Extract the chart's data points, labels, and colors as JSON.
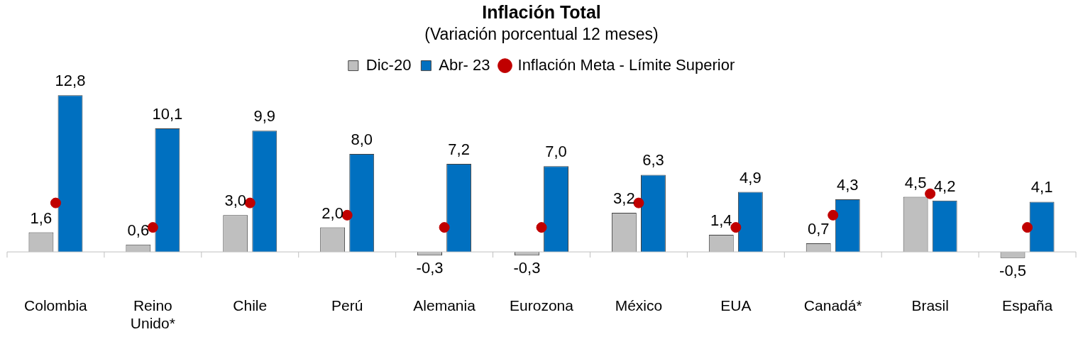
{
  "chart_data": {
    "type": "bar",
    "title": "Inflación Total",
    "subtitle": "(Variación porcentual 12 meses)",
    "categories": [
      "Colombia",
      "Reino Unido*",
      "Chile",
      "Perú",
      "Alemania",
      "Eurozona",
      "México",
      "EUA",
      "Canadá*",
      "Brasil",
      "España"
    ],
    "series": [
      {
        "name": "Dic-20",
        "color": "#bfbfbf",
        "values": [
          1.6,
          0.6,
          3.0,
          2.0,
          -0.3,
          -0.3,
          3.2,
          1.4,
          0.7,
          4.5,
          -0.5
        ],
        "value_labels": [
          "1,6",
          "0,6",
          "3,0",
          "2,0",
          "-0,3",
          "-0,3",
          "3,2",
          "1,4",
          "0,7",
          "4,5",
          "-0,5"
        ]
      },
      {
        "name": "Abr- 23",
        "color": "#0070c0",
        "values": [
          12.8,
          10.1,
          9.9,
          8.0,
          7.2,
          7.0,
          6.3,
          4.9,
          4.3,
          4.2,
          4.1
        ],
        "value_labels": [
          "12,8",
          "10,1",
          "9,9",
          "8,0",
          "7,2",
          "7,0",
          "6,3",
          "4,9",
          "4,3",
          "4,2",
          "4,1"
        ]
      },
      {
        "name": "Inflación Meta - Límite Superior",
        "type": "scatter",
        "color": "#c00000",
        "x": [
          "Colombia",
          "Reino Unido*",
          "Chile",
          "Perú",
          "Alemania",
          "Eurozona",
          "México",
          "EUA",
          "Canadá*",
          "Brasil",
          "España"
        ],
        "values": [
          4,
          2,
          4,
          3,
          2,
          2,
          4,
          2,
          3,
          4.75,
          2
        ]
      }
    ],
    "legend": "top right",
    "marker": "circle",
    "grid": false
  }
}
